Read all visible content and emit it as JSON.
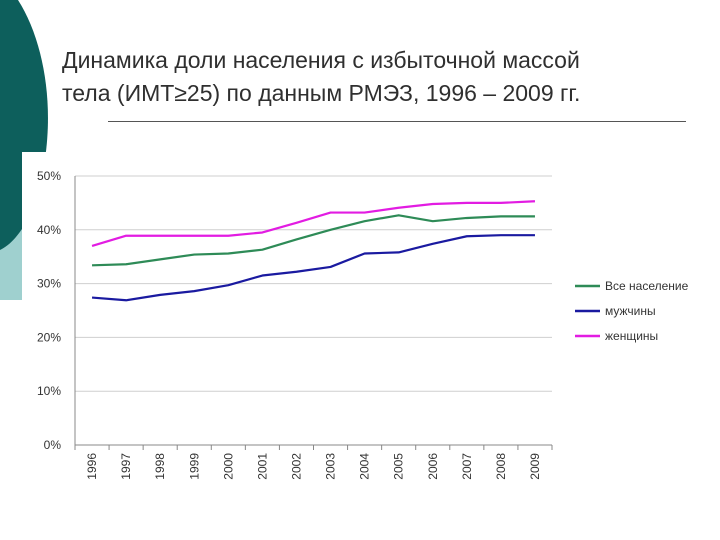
{
  "slide": {
    "title_line1": "Динамика доли населения с избыточной массой",
    "title_line2": "тела (ИМТ≥25) по данным РМЭЗ, 1996 – 2009 гг."
  },
  "chart_data": {
    "type": "line",
    "title": "Динамика доли населения с избыточной массой тела (ИМТ≥25) по данным РМЭЗ, 1996 – 2009 гг.",
    "xlabel": "",
    "ylabel": "",
    "categories": [
      "1996",
      "1997",
      "1998",
      "1999",
      "2000",
      "2001",
      "2002",
      "2003",
      "2004",
      "2005",
      "2006",
      "2007",
      "2008",
      "2009"
    ],
    "ylim": [
      0,
      50
    ],
    "yticks": [
      "0%",
      "10%",
      "20%",
      "30%",
      "40%",
      "50%"
    ],
    "grid": true,
    "legend_position": "right",
    "series": [
      {
        "name": "Все население",
        "color": "#2e8b57",
        "values": [
          33.4,
          33.6,
          34.5,
          35.4,
          35.6,
          36.3,
          38.2,
          40.0,
          41.6,
          42.7,
          41.6,
          42.2,
          42.5,
          42.5
        ]
      },
      {
        "name": "мужчины",
        "color": "#1a1aa0",
        "values": [
          27.4,
          26.9,
          27.9,
          28.6,
          29.7,
          31.5,
          32.2,
          33.1,
          35.6,
          35.8,
          37.4,
          38.8,
          39.0,
          39.0
        ]
      },
      {
        "name": "женщины",
        "color": "#e21ce2",
        "values": [
          37.0,
          38.9,
          38.9,
          38.9,
          38.9,
          39.5,
          41.3,
          43.2,
          43.2,
          44.1,
          44.8,
          45.0,
          45.0,
          45.3
        ]
      }
    ]
  }
}
